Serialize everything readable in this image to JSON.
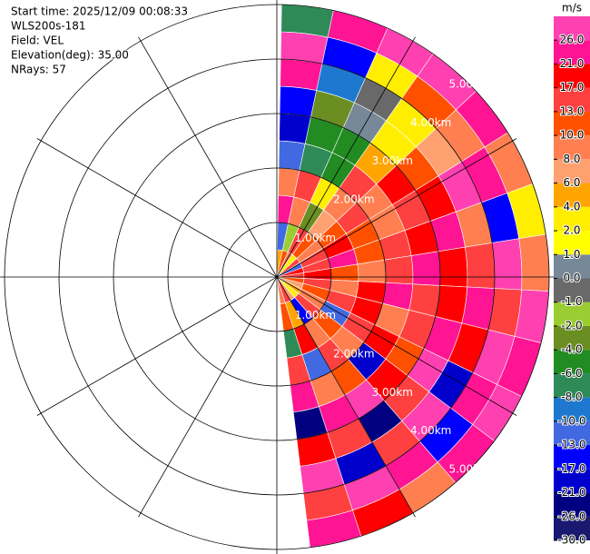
{
  "info": [
    "Start time: 2025/12/09 00:08:33",
    "WLS200s-181",
    "Field: VEL",
    "Elevation(deg): 35.00",
    "NRays: 57"
  ],
  "chart_data": {
    "type": "ppi",
    "rlim": [
      0,
      5
    ],
    "range_rings": [
      {
        "value": 1,
        "label": "1.00km"
      },
      {
        "value": 2,
        "label": "2.00km"
      },
      {
        "value": 3,
        "label": "3.00km"
      },
      {
        "value": 4,
        "label": "4.00km"
      },
      {
        "value": 5,
        "label": "5.00km"
      }
    ],
    "field": {
      "azimuth_edges": [
        1,
        12,
        24,
        35,
        47,
        58,
        70,
        81,
        93,
        104,
        116,
        127,
        139,
        150,
        162,
        173
      ],
      "range_edges": [
        0,
        0.5,
        1,
        1.5,
        2,
        2.5,
        3,
        3.5,
        4,
        4.5,
        5
      ],
      "values": [
        [
          4,
          -13,
          21,
          8,
          -13,
          -21,
          -17,
          21,
          26,
          -8
        ],
        [
          10,
          -2,
          8,
          13,
          -8,
          -6,
          -4,
          -10,
          -17,
          21
        ],
        [
          8,
          13,
          -4,
          2,
          -6,
          -6,
          0,
          -1,
          2,
          26
        ],
        [
          2,
          10,
          6,
          8,
          13,
          4,
          2,
          2,
          10,
          26
        ],
        [
          13,
          8,
          10,
          13,
          8,
          17,
          10,
          6,
          8,
          21
        ],
        [
          -13,
          13,
          17,
          10,
          8,
          13,
          17,
          26,
          21,
          8
        ],
        [
          17,
          13,
          21,
          10,
          13,
          17,
          21,
          8,
          -17,
          2
        ],
        [
          13,
          17,
          10,
          8,
          13,
          21,
          17,
          13,
          26,
          8
        ],
        [
          10,
          13,
          8,
          17,
          21,
          13,
          17,
          21,
          13,
          26
        ],
        [
          6,
          10,
          13,
          17,
          8,
          13,
          21,
          17,
          26,
          21
        ],
        [
          4,
          8,
          -13,
          13,
          17,
          10,
          26,
          -21,
          21,
          26
        ],
        [
          2,
          13,
          10,
          8,
          -21,
          17,
          13,
          26,
          -17,
          21
        ],
        [
          6,
          -17,
          8,
          13,
          10,
          26,
          -26,
          13,
          21,
          8
        ],
        [
          13,
          4,
          17,
          -13,
          8,
          21,
          13,
          -21,
          26,
          17
        ],
        [
          8,
          10,
          -8,
          13,
          21,
          -26,
          17,
          26,
          13,
          21
        ]
      ]
    },
    "colorbar": {
      "title": "m/s",
      "lim": [
        -30,
        30
      ],
      "ticks": [
        {
          "value": -30,
          "label": "-30.0"
        },
        {
          "value": -26,
          "label": "-26.0"
        },
        {
          "value": -21,
          "label": "-21.0"
        },
        {
          "value": -17,
          "label": "-17.0"
        },
        {
          "value": -13,
          "label": "-13.0"
        },
        {
          "value": -10,
          "label": "-10.0"
        },
        {
          "value": -8,
          "label": "-8.0"
        },
        {
          "value": -6,
          "label": "-6.0"
        },
        {
          "value": -4,
          "label": "-4.0"
        },
        {
          "value": -2,
          "label": "-2.0"
        },
        {
          "value": -1,
          "label": "-1.0"
        },
        {
          "value": 0,
          "label": "0.0"
        },
        {
          "value": 1,
          "label": "1.0"
        },
        {
          "value": 2,
          "label": "2.0"
        },
        {
          "value": 4,
          "label": "4.0"
        },
        {
          "value": 6,
          "label": "6.0"
        },
        {
          "value": 8,
          "label": "8.0"
        },
        {
          "value": 10,
          "label": "10.0"
        },
        {
          "value": 13,
          "label": "13.0"
        },
        {
          "value": 17,
          "label": "17.0"
        },
        {
          "value": 21,
          "label": "21.0"
        },
        {
          "value": 26,
          "label": "26.0"
        }
      ],
      "colors": [
        "#191970",
        "#000080",
        "#0000cd",
        "#0000ff",
        "#4169e1",
        "#1e78d0",
        "#2e8b57",
        "#228b22",
        "#6b8e23",
        "#9acd32",
        "#696969",
        "#778899",
        "#ffff00",
        "#ffee00",
        "#ffa500",
        "#ffa070",
        "#ff7f50",
        "#ff5000",
        "#ff4040",
        "#ff0000",
        "#ff1493",
        "#ff40b0"
      ]
    }
  }
}
